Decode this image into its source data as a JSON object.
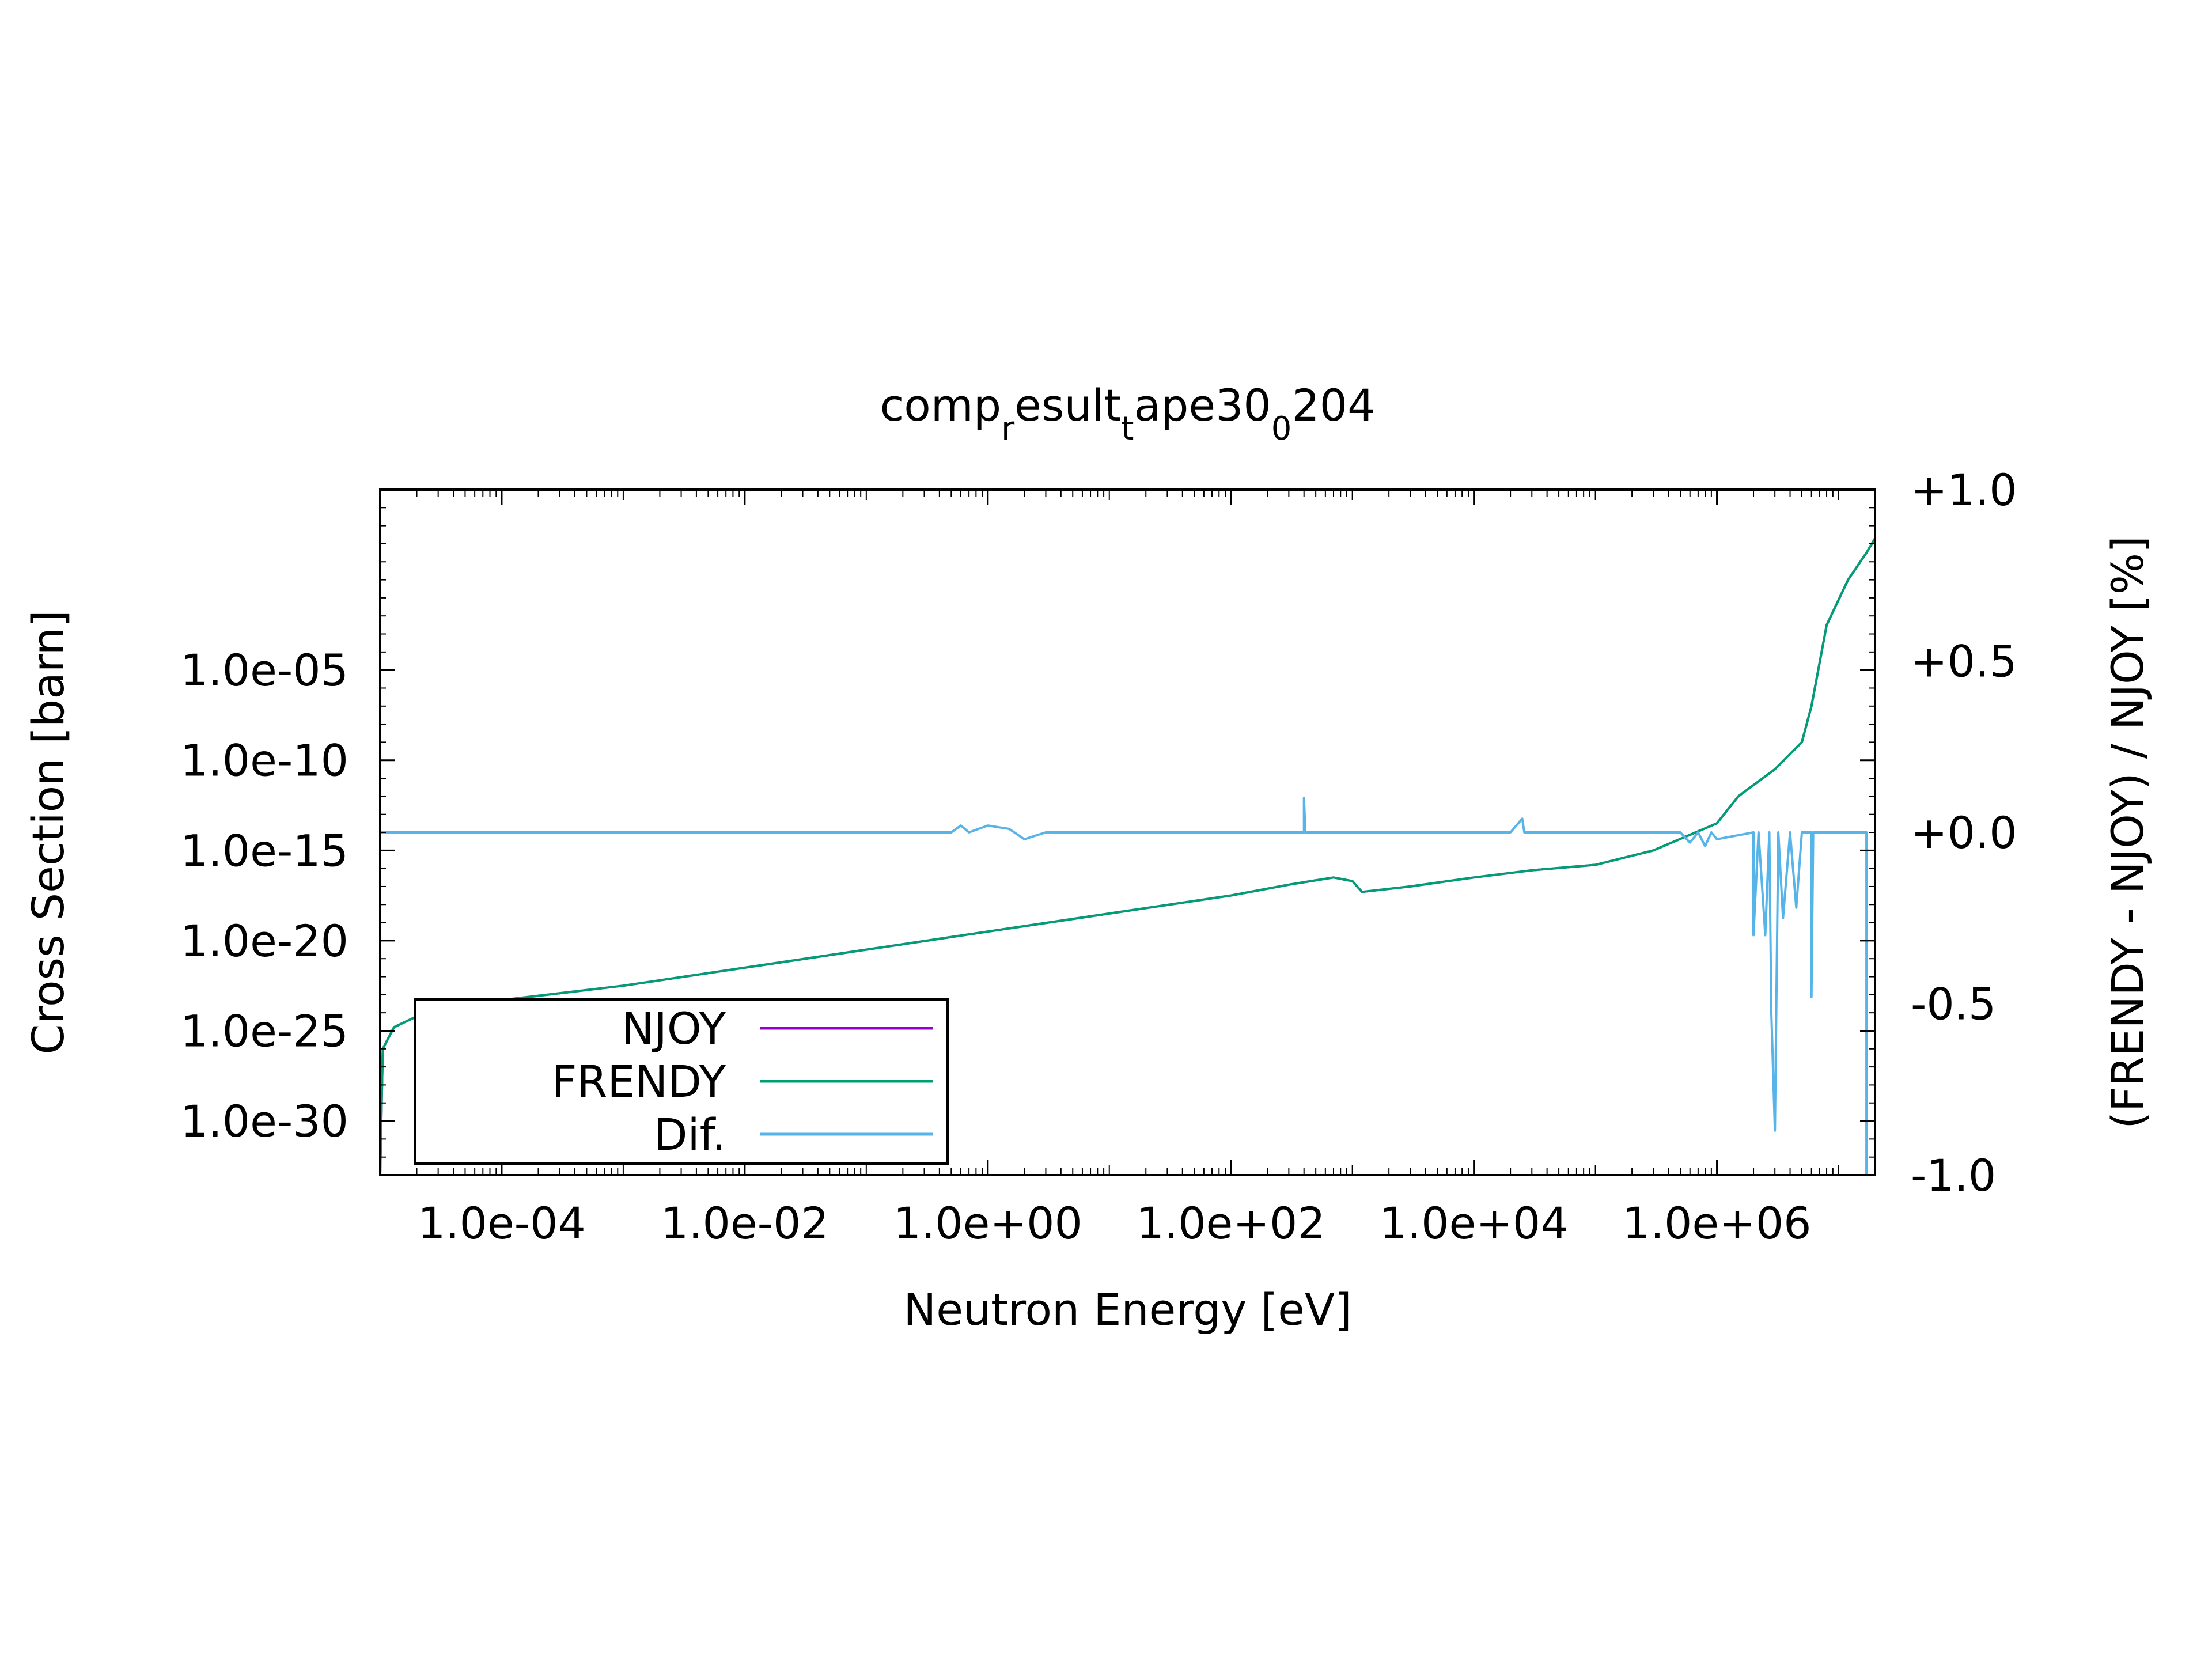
{
  "chart_data": {
    "type": "line",
    "title": {
      "parts": [
        {
          "text": "comp",
          "sub": false
        },
        {
          "text": "r",
          "sub": true
        },
        {
          "text": "esult",
          "sub": false
        },
        {
          "text": "t",
          "sub": true
        },
        {
          "text": "ape30",
          "sub": false
        },
        {
          "text": "0",
          "sub": true
        },
        {
          "text": "204",
          "sub": false
        }
      ]
    },
    "xlabel": "Neutron Energy [eV]",
    "ylabel": "Cross Section [barn]",
    "y2label": "(FRENDY - NJOY) / NJOY [%]",
    "x_scale": "log",
    "y_scale": "log",
    "xlim": [
      1e-05,
      20000000.0
    ],
    "ylim_exp": [
      -33,
      5
    ],
    "y2lim": [
      -1.0,
      1.0
    ],
    "x_ticks": [
      {
        "value": 0.0001,
        "label": "1.0e-04"
      },
      {
        "value": 0.01,
        "label": "1.0e-02"
      },
      {
        "value": 1,
        "label": "1.0e+00"
      },
      {
        "value": 100,
        "label": "1.0e+02"
      },
      {
        "value": 10000,
        "label": "1.0e+04"
      },
      {
        "value": 1000000,
        "label": "1.0e+06"
      }
    ],
    "y_ticks": [
      {
        "exp": -5,
        "label": "1.0e-05"
      },
      {
        "exp": -10,
        "label": "1.0e-10"
      },
      {
        "exp": -15,
        "label": "1.0e-15"
      },
      {
        "exp": -20,
        "label": "1.0e-20"
      },
      {
        "exp": -25,
        "label": "1.0e-25"
      },
      {
        "exp": -30,
        "label": "1.0e-30"
      }
    ],
    "y2_ticks": [
      {
        "value": 1.0,
        "label": "+1.0"
      },
      {
        "value": 0.5,
        "label": "+0.5"
      },
      {
        "value": 0.0,
        "label": "+0.0"
      },
      {
        "value": -0.5,
        "label": "-0.5"
      },
      {
        "value": -1.0,
        "label": "-1.0"
      }
    ],
    "grid": false,
    "legend_position": "bottom-left",
    "series": [
      {
        "name": "NJOY",
        "color": "#9400d3",
        "axis": "y1",
        "points": [
          [
            1e-05,
            -33
          ],
          [
            1.05e-05,
            -26
          ],
          [
            1.3e-05,
            -24.8
          ],
          [
            2e-05,
            -24.2
          ],
          [
            5e-05,
            -23.6
          ],
          [
            0.0001,
            -23.3
          ],
          [
            0.001,
            -22.5
          ],
          [
            0.01,
            -21.5
          ],
          [
            0.1,
            -20.5
          ],
          [
            1,
            -19.5
          ],
          [
            10,
            -18.5
          ],
          [
            100,
            -17.5
          ],
          [
            300,
            -16.9
          ],
          [
            700,
            -16.5
          ],
          [
            1000,
            -16.7
          ],
          [
            1200,
            -17.3
          ],
          [
            3000,
            -17.0
          ],
          [
            10000,
            -16.5
          ],
          [
            30000,
            -16.1
          ],
          [
            100000,
            -15.8
          ],
          [
            300000,
            -15.0
          ],
          [
            1000000,
            -13.5
          ],
          [
            1500000,
            -12.0
          ],
          [
            3000000,
            -10.5
          ],
          [
            5000000,
            -9.0
          ],
          [
            6000000,
            -7.0
          ],
          [
            8000000,
            -2.5
          ],
          [
            12000000.0,
            0.0
          ],
          [
            17000000.0,
            1.5
          ],
          [
            20000000.0,
            2.3
          ]
        ]
      },
      {
        "name": "FRENDY",
        "color": "#009e73",
        "axis": "y1",
        "points": [
          [
            1e-05,
            -33
          ],
          [
            1.05e-05,
            -26
          ],
          [
            1.3e-05,
            -24.8
          ],
          [
            2e-05,
            -24.2
          ],
          [
            5e-05,
            -23.6
          ],
          [
            0.0001,
            -23.3
          ],
          [
            0.001,
            -22.5
          ],
          [
            0.01,
            -21.5
          ],
          [
            0.1,
            -20.5
          ],
          [
            1,
            -19.5
          ],
          [
            10,
            -18.5
          ],
          [
            100,
            -17.5
          ],
          [
            300,
            -16.9
          ],
          [
            700,
            -16.5
          ],
          [
            1000,
            -16.7
          ],
          [
            1200,
            -17.3
          ],
          [
            3000,
            -17.0
          ],
          [
            10000,
            -16.5
          ],
          [
            30000,
            -16.1
          ],
          [
            100000,
            -15.8
          ],
          [
            300000,
            -15.0
          ],
          [
            1000000,
            -13.5
          ],
          [
            1500000,
            -12.0
          ],
          [
            3000000,
            -10.5
          ],
          [
            5000000,
            -9.0
          ],
          [
            6000000,
            -7.0
          ],
          [
            8000000,
            -2.5
          ],
          [
            12000000.0,
            0.0
          ],
          [
            17000000.0,
            1.5
          ],
          [
            20000000.0,
            2.3
          ]
        ]
      },
      {
        "name": "Dif.",
        "color": "#56b4e9",
        "axis": "y2",
        "points": [
          [
            1e-05,
            0.0
          ],
          [
            0.5,
            0.0
          ],
          [
            0.6,
            0.02
          ],
          [
            0.7,
            0.0
          ],
          [
            1.0,
            0.02
          ],
          [
            1.5,
            0.01
          ],
          [
            2.0,
            -0.02
          ],
          [
            3.0,
            0.0
          ],
          [
            400,
            0.0
          ],
          [
            400,
            0.1
          ],
          [
            410,
            0.0
          ],
          [
            20000,
            0.0
          ],
          [
            25000,
            0.04
          ],
          [
            26000,
            0.0
          ],
          [
            500000,
            0.0
          ],
          [
            600000,
            -0.03
          ],
          [
            700000,
            0.0
          ],
          [
            800000,
            -0.04
          ],
          [
            900000,
            0.0
          ],
          [
            1000000,
            -0.02
          ],
          [
            2000000,
            0.0
          ],
          [
            2000000,
            -0.3
          ],
          [
            2200000,
            0.0
          ],
          [
            2500000,
            -0.3
          ],
          [
            2700000,
            0.0
          ],
          [
            2800000,
            -0.52
          ],
          [
            3000000,
            -0.87
          ],
          [
            3200000,
            0.0
          ],
          [
            3500000,
            -0.25
          ],
          [
            4000000,
            0.0
          ],
          [
            4500000,
            -0.22
          ],
          [
            5000000,
            0.0
          ],
          [
            6000000,
            0.0
          ],
          [
            6000000,
            -0.48
          ],
          [
            6200000,
            0.0
          ],
          [
            17000000.0,
            0.0
          ],
          [
            17000000.0,
            -1.0
          ],
          [
            20000000.0,
            -1.0
          ],
          [
            20000000.0,
            0.0
          ]
        ]
      }
    ]
  }
}
